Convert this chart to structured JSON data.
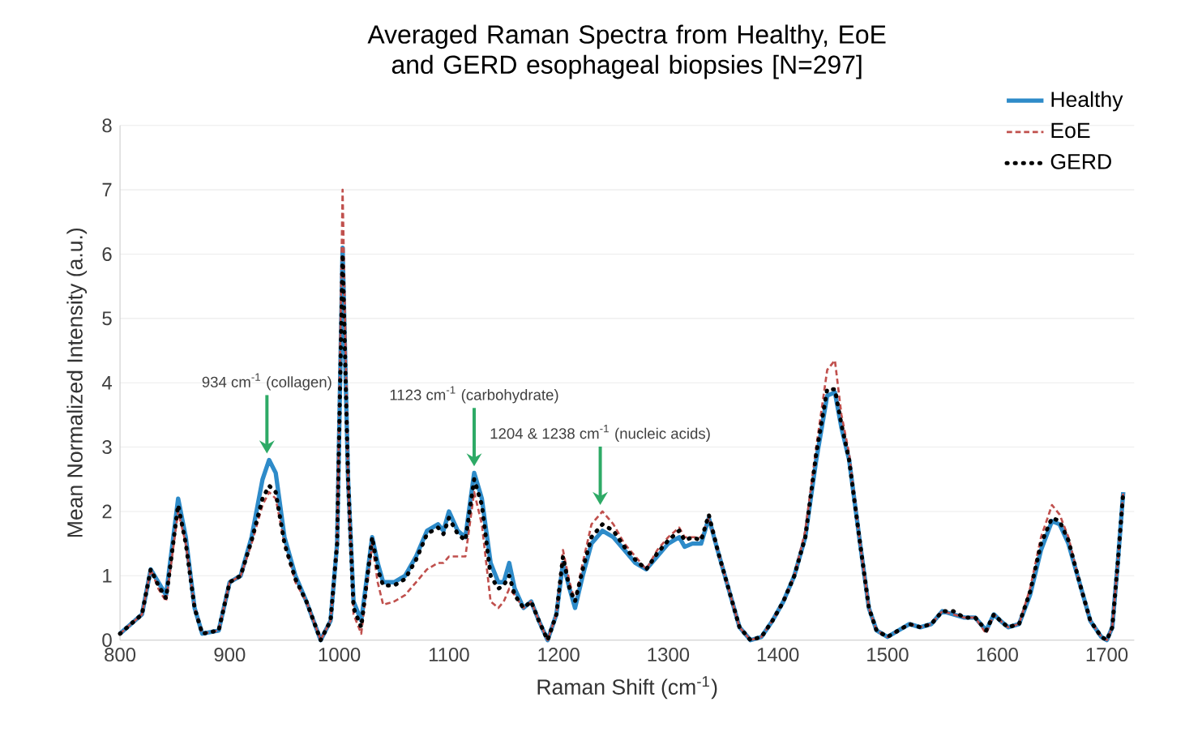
{
  "chart_data": {
    "type": "line",
    "title": "Averaged Raman Spectra from Healthy, EoE and GERD esophageal biopsies [N=297]",
    "xlabel": "Raman Shift (cm$^{-1}$)",
    "ylabel": "Mean Normalized Intensity (a.u.)",
    "xlim": [
      800,
      1725
    ],
    "ylim": [
      0,
      8
    ],
    "xticks": [
      800,
      900,
      1000,
      1100,
      1200,
      1300,
      1400,
      1500,
      1600,
      1700
    ],
    "yticks": [
      0,
      1,
      2,
      3,
      4,
      5,
      6,
      7,
      8
    ],
    "grid": "y",
    "legend": "top right",
    "marker": "none",
    "x": [
      800,
      810,
      820,
      828,
      835,
      842,
      853,
      860,
      868,
      875,
      890,
      900,
      910,
      920,
      930,
      936,
      942,
      950,
      960,
      970,
      983,
      992,
      998,
      1003,
      1008,
      1013,
      1020,
      1030,
      1035,
      1040,
      1050,
      1060,
      1070,
      1080,
      1090,
      1095,
      1100,
      1108,
      1115,
      1123,
      1130,
      1138,
      1145,
      1150,
      1155,
      1160,
      1168,
      1175,
      1182,
      1190,
      1198,
      1204,
      1210,
      1215,
      1222,
      1230,
      1240,
      1250,
      1260,
      1270,
      1280,
      1290,
      1300,
      1310,
      1315,
      1322,
      1330,
      1337,
      1345,
      1355,
      1365,
      1375,
      1385,
      1395,
      1405,
      1415,
      1425,
      1435,
      1445,
      1452,
      1458,
      1465,
      1475,
      1483,
      1490,
      1500,
      1510,
      1520,
      1530,
      1540,
      1550,
      1560,
      1570,
      1580,
      1590,
      1597,
      1603,
      1610,
      1620,
      1630,
      1640,
      1650,
      1657,
      1665,
      1675,
      1685,
      1695,
      1700,
      1705,
      1710,
      1715
    ],
    "series": [
      {
        "name": "Healthy",
        "color": "#2e8bc9",
        "line_style": "solid",
        "values": [
          0.1,
          0.25,
          0.4,
          1.1,
          0.9,
          0.7,
          2.2,
          1.6,
          0.5,
          0.1,
          0.15,
          0.9,
          1.0,
          1.6,
          2.5,
          2.8,
          2.6,
          1.6,
          1.0,
          0.6,
          0.0,
          0.3,
          1.5,
          6.1,
          2.5,
          0.6,
          0.3,
          1.6,
          1.2,
          0.9,
          0.9,
          1.0,
          1.3,
          1.7,
          1.8,
          1.7,
          2.0,
          1.7,
          1.6,
          2.6,
          2.2,
          1.2,
          0.9,
          0.9,
          1.2,
          0.8,
          0.5,
          0.6,
          0.3,
          0.0,
          0.4,
          1.2,
          0.8,
          0.5,
          1.0,
          1.5,
          1.7,
          1.6,
          1.4,
          1.2,
          1.1,
          1.3,
          1.5,
          1.6,
          1.45,
          1.5,
          1.5,
          1.9,
          1.4,
          0.8,
          0.2,
          0.0,
          0.05,
          0.3,
          0.6,
          1.0,
          1.6,
          2.8,
          3.8,
          3.85,
          3.3,
          2.8,
          1.5,
          0.5,
          0.15,
          0.05,
          0.15,
          0.25,
          0.2,
          0.25,
          0.45,
          0.4,
          0.35,
          0.35,
          0.15,
          0.4,
          0.3,
          0.2,
          0.25,
          0.7,
          1.4,
          1.85,
          1.8,
          1.5,
          0.9,
          0.3,
          0.05,
          0.0,
          0.2,
          1.2,
          2.3
        ]
      },
      {
        "name": "EoE",
        "color": "#c0504d",
        "line_style": "dashed",
        "values": [
          0.1,
          0.25,
          0.4,
          1.1,
          0.8,
          0.6,
          2.0,
          1.5,
          0.5,
          0.1,
          0.15,
          0.9,
          1.0,
          1.5,
          2.1,
          2.3,
          2.2,
          1.5,
          0.9,
          0.6,
          0.0,
          0.3,
          1.5,
          7.0,
          2.5,
          0.4,
          0.1,
          1.5,
          0.9,
          0.55,
          0.6,
          0.7,
          0.9,
          1.1,
          1.2,
          1.2,
          1.3,
          1.3,
          1.3,
          2.3,
          1.8,
          0.6,
          0.5,
          0.6,
          0.8,
          0.7,
          0.5,
          0.6,
          0.3,
          0.0,
          0.4,
          1.4,
          0.9,
          0.6,
          1.2,
          1.8,
          2.0,
          1.8,
          1.5,
          1.3,
          1.1,
          1.4,
          1.6,
          1.75,
          1.6,
          1.6,
          1.6,
          1.9,
          1.4,
          0.8,
          0.2,
          0.0,
          0.05,
          0.3,
          0.6,
          1.0,
          1.7,
          3.0,
          4.2,
          4.35,
          3.5,
          2.9,
          1.5,
          0.5,
          0.15,
          0.05,
          0.15,
          0.25,
          0.2,
          0.25,
          0.45,
          0.4,
          0.35,
          0.35,
          0.1,
          0.4,
          0.3,
          0.2,
          0.25,
          0.8,
          1.6,
          2.1,
          1.95,
          1.6,
          0.9,
          0.3,
          0.05,
          0.0,
          0.2,
          1.2,
          2.3
        ]
      },
      {
        "name": "GERD",
        "color": "#000000",
        "line_style": "dotted",
        "values": [
          0.1,
          0.25,
          0.4,
          1.1,
          0.85,
          0.65,
          2.1,
          1.5,
          0.5,
          0.1,
          0.15,
          0.9,
          1.0,
          1.55,
          2.2,
          2.4,
          2.3,
          1.5,
          0.95,
          0.6,
          0.0,
          0.3,
          1.5,
          6.0,
          2.5,
          0.5,
          0.2,
          1.6,
          1.1,
          0.85,
          0.85,
          0.95,
          1.25,
          1.65,
          1.75,
          1.65,
          1.9,
          1.65,
          1.55,
          2.5,
          2.1,
          1.0,
          0.8,
          0.85,
          1.0,
          0.7,
          0.5,
          0.6,
          0.3,
          0.0,
          0.4,
          1.3,
          0.8,
          0.6,
          1.1,
          1.6,
          1.8,
          1.7,
          1.45,
          1.25,
          1.1,
          1.35,
          1.55,
          1.7,
          1.55,
          1.6,
          1.55,
          1.95,
          1.4,
          0.8,
          0.2,
          0.0,
          0.05,
          0.3,
          0.6,
          1.0,
          1.6,
          2.9,
          3.9,
          3.9,
          3.35,
          2.8,
          1.5,
          0.5,
          0.15,
          0.05,
          0.15,
          0.25,
          0.2,
          0.25,
          0.45,
          0.45,
          0.35,
          0.35,
          0.15,
          0.4,
          0.3,
          0.2,
          0.25,
          0.75,
          1.5,
          1.9,
          1.85,
          1.55,
          0.9,
          0.3,
          0.05,
          0.0,
          0.2,
          1.2,
          2.3
        ]
      }
    ],
    "annotations": [
      {
        "text": "934 cm$^{-1}$ (collagen)",
        "x": 934,
        "y": 2.8
      },
      {
        "text": "1123 cm$^{-1}$ (carbohydrate)",
        "x": 1123,
        "y": 2.6
      },
      {
        "text": "1204 & 1238 cm$^{-1}$ (nucleic acids)",
        "x": 1238,
        "y": 2.0
      }
    ]
  }
}
